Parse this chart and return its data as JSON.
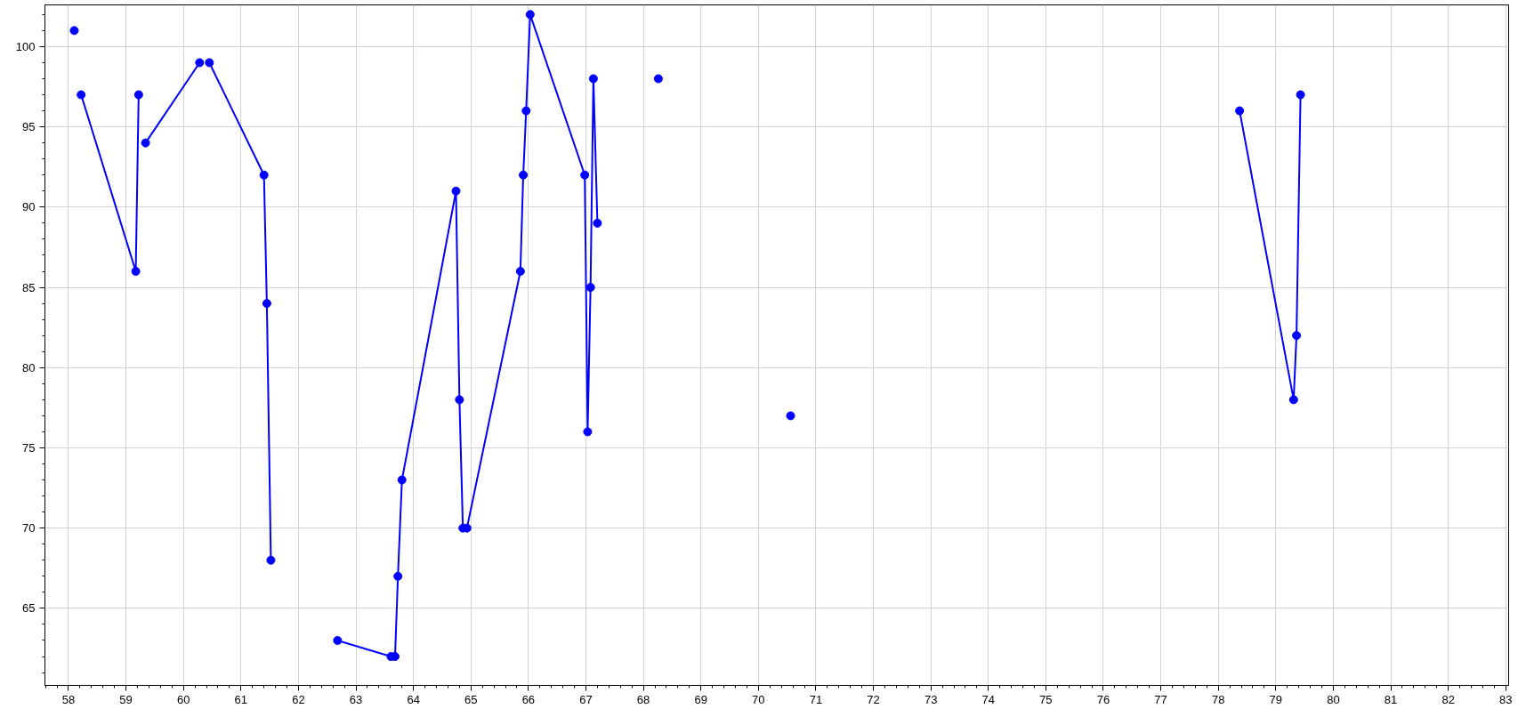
{
  "chart_data": {
    "type": "line",
    "marker": "circle",
    "line_style": "solid",
    "grid": true,
    "xlim": [
      57.59,
      83.05
    ],
    "ylim": [
      60.2,
      102.6
    ],
    "xticks": [
      58,
      59,
      60,
      61,
      62,
      63,
      64,
      65,
      66,
      67,
      68,
      69,
      70,
      71,
      72,
      73,
      74,
      75,
      76,
      77,
      78,
      79,
      80,
      81,
      82,
      83
    ],
    "yticks": [
      65,
      70,
      75,
      80,
      85,
      90,
      95,
      100
    ],
    "series": [
      {
        "color": "#0000ff",
        "x": [
          58.1,
          null,
          58.22,
          59.17,
          59.22,
          null,
          59.34,
          60.28,
          null,
          60.45,
          61.4,
          61.45,
          61.52,
          null,
          62.68,
          63.61,
          63.68,
          63.73,
          63.8,
          64.74,
          64.8,
          64.86,
          64.93,
          65.86,
          65.91,
          65.96,
          66.03,
          66.98,
          67.03,
          67.08,
          67.13,
          67.2,
          null,
          68.26,
          null,
          70.56,
          null,
          78.37,
          79.31,
          79.36,
          79.43
        ],
        "values": [
          101,
          null,
          97,
          86,
          97,
          null,
          94,
          99,
          null,
          99,
          92,
          84,
          68,
          null,
          63,
          62,
          62,
          67,
          73,
          91,
          78,
          70,
          70,
          86,
          92,
          96,
          102,
          92,
          76,
          85,
          98,
          89,
          null,
          98,
          null,
          77,
          null,
          96,
          78,
          82,
          97
        ]
      }
    ]
  }
}
